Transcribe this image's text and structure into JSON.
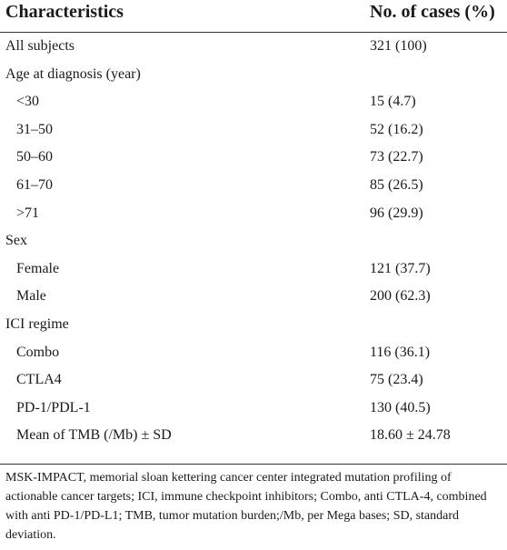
{
  "header": {
    "col1": "Characteristics",
    "col2": "No. of cases (%)"
  },
  "rows": [
    {
      "label": "All subjects",
      "value": "321 (100)"
    },
    {
      "label": "Age at diagnosis (year)",
      "value": ""
    },
    {
      "label": "<30",
      "value": "15 (4.7)"
    },
    {
      "label": "31–50",
      "value": "52 (16.2)"
    },
    {
      "label": "50–60",
      "value": "73 (22.7)"
    },
    {
      "label": "61–70",
      "value": "85 (26.5)"
    },
    {
      "label": ">71",
      "value": "96 (29.9)"
    },
    {
      "label": "Sex",
      "value": ""
    },
    {
      "label": "Female",
      "value": "121 (37.7)"
    },
    {
      "label": "Male",
      "value": "200 (62.3)"
    },
    {
      "label": "ICI regime",
      "value": ""
    },
    {
      "label": "Combo",
      "value": "116 (36.1)"
    },
    {
      "label": "CTLA4",
      "value": "75 (23.4)"
    },
    {
      "label": "PD-1/PDL-1",
      "value": "130 (40.5)"
    },
    {
      "label": "Mean of TMB (/Mb) ± SD",
      "value": "18.60 ± 24.78"
    }
  ],
  "footnote": "MSK-IMPACT, memorial sloan kettering cancer center integrated mutation profiling of actionable cancer targets; ICI, immune checkpoint inhibitors; Combo, anti CTLA-4, combined with anti PD-1/PD-L1; TMB, tumor mutation burden;/Mb, per Mega bases; SD, standard deviation."
}
